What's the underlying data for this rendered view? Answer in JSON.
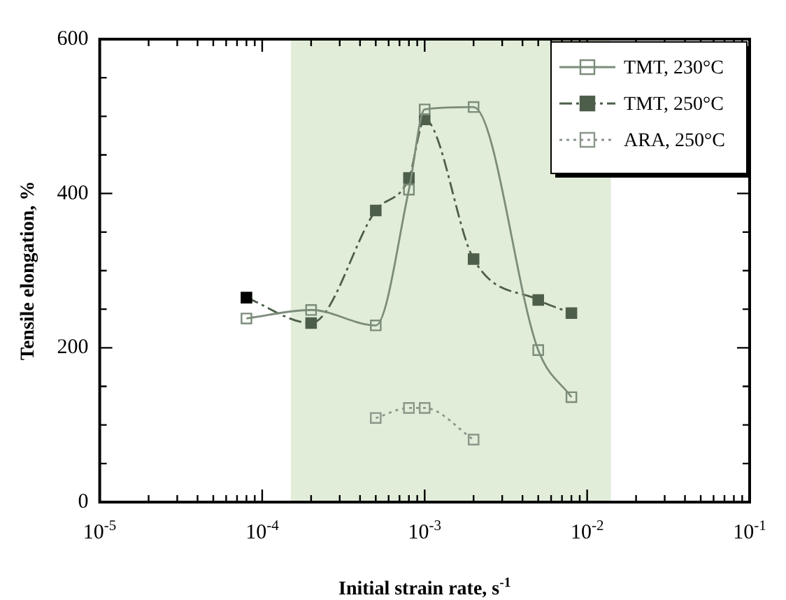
{
  "chart_data": {
    "type": "line",
    "xlabel": "Initial strain rate, s$^{-1}$",
    "ylabel": "Tensile elongation, %",
    "log": "x",
    "xlim": [
      1e-05,
      0.1
    ],
    "ylim": [
      0,
      600
    ],
    "xticks": [
      {
        "value": 1e-05,
        "label": "10$^{-5}$"
      },
      {
        "value": 2e-05,
        "label": null
      },
      {
        "value": 3e-05,
        "label": null
      },
      {
        "value": 4e-05,
        "label": null
      },
      {
        "value": 5e-05,
        "label": null
      },
      {
        "value": 6e-05,
        "label": null
      },
      {
        "value": 7e-05,
        "label": null
      },
      {
        "value": 8e-05,
        "label": null
      },
      {
        "value": 9e-05,
        "label": null
      },
      {
        "value": 0.0001,
        "label": "10$^{-4}$"
      },
      {
        "value": 0.0002,
        "label": null
      },
      {
        "value": 0.0003,
        "label": null
      },
      {
        "value": 0.0004,
        "label": null
      },
      {
        "value": 0.0005,
        "label": null
      },
      {
        "value": 0.0006,
        "label": null
      },
      {
        "value": 0.0007,
        "label": null
      },
      {
        "value": 0.0008,
        "label": null
      },
      {
        "value": 0.0009,
        "label": null
      },
      {
        "value": 0.001,
        "label": "10$^{-3}$"
      },
      {
        "value": 0.002,
        "label": null
      },
      {
        "value": 0.003,
        "label": null
      },
      {
        "value": 0.004,
        "label": null
      },
      {
        "value": 0.005,
        "label": null
      },
      {
        "value": 0.006,
        "label": null
      },
      {
        "value": 0.007,
        "label": null
      },
      {
        "value": 0.008,
        "label": null
      },
      {
        "value": 0.009,
        "label": null
      },
      {
        "value": 0.01,
        "label": "10$^{-2}$"
      },
      {
        "value": 0.02,
        "label": null
      },
      {
        "value": 0.03,
        "label": null
      },
      {
        "value": 0.04,
        "label": null
      },
      {
        "value": 0.05,
        "label": null
      },
      {
        "value": 0.06,
        "label": null
      },
      {
        "value": 0.07,
        "label": null
      },
      {
        "value": 0.08,
        "label": null
      },
      {
        "value": 0.09,
        "label": null
      },
      {
        "value": 0.1,
        "label": "10$^{-1}$"
      }
    ],
    "yticks": [
      0,
      {
        "value": 50,
        "label": null
      },
      {
        "value": 100,
        "label": null
      },
      {
        "value": 150,
        "label": null
      },
      200,
      {
        "value": 250,
        "label": null
      },
      {
        "value": 300,
        "label": null
      },
      {
        "value": 350,
        "label": null
      },
      400,
      {
        "value": 450,
        "label": null
      },
      {
        "value": 500,
        "label": null
      },
      {
        "value": 550,
        "label": null
      },
      600
    ],
    "grid": false,
    "legend": "top right",
    "marker": "square",
    "bands": [
      {
        "axis": "x",
        "from": 0.00015,
        "to": 0.014,
        "color": "#e1edd9"
      }
    ],
    "series": [
      {
        "name": "TMT, 230°C",
        "color": "#7c8c7a",
        "line_style": "solid",
        "x": [
          8e-05,
          0.0002,
          0.0005,
          0.0008,
          0.001,
          0.002,
          0.005,
          0.008
        ],
        "values": [
          238,
          249,
          229,
          405,
          509,
          512,
          197,
          136
        ]
      },
      {
        "name": "TMT, 250°C",
        "color": "#4d5e4b",
        "line_style": "dashed",
        "colors": [
          "#000000",
          "#4d5e4b",
          "#4d5e4b",
          "#4d5e4b",
          "#4d5e4b",
          "#4d5e4b",
          "#4d5e4b",
          "#4d5e4b"
        ],
        "x": [
          8e-05,
          0.0002,
          0.0005,
          0.0008,
          0.001,
          0.002,
          0.005,
          0.008
        ],
        "values": [
          265,
          232,
          378,
          420,
          496,
          315,
          262,
          245
        ]
      },
      {
        "name": "ARA, 250°C",
        "color": "#8a968a",
        "line_style": "dotted",
        "x": [
          0.0005,
          0.0008,
          0.001,
          0.002
        ],
        "values": [
          109,
          122,
          122,
          81
        ]
      }
    ]
  }
}
